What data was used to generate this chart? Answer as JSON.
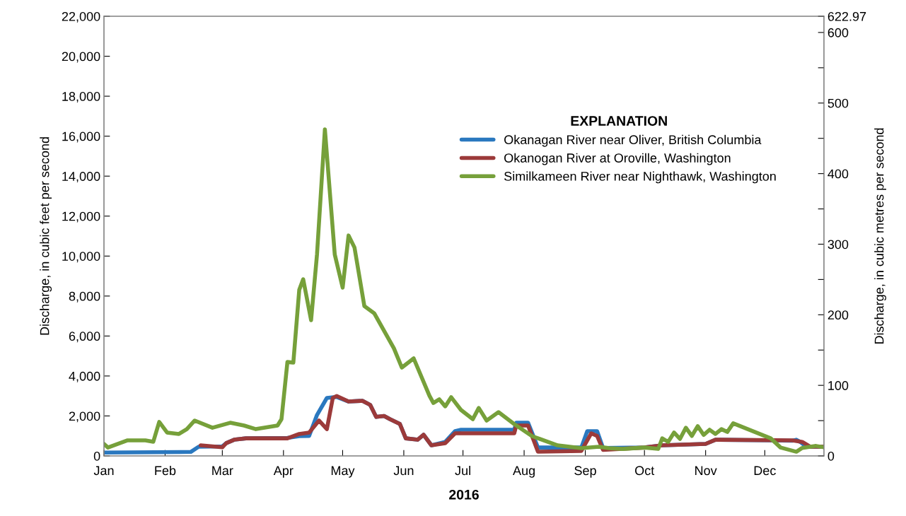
{
  "chart_data": {
    "type": "line",
    "xlabel": "2016",
    "ylabel": "Discharge, in cubic feet per second",
    "y2label": "Discharge, in cubic metres per second",
    "legend_title": "EXPLANATION",
    "legend": "top right",
    "grid": false,
    "marker": "none",
    "line_style": "solid",
    "xlim": [
      "2016-01-01",
      "2016-12-31"
    ],
    "xticks": [
      {
        "value": "2016-01-01",
        "label": "Jan"
      },
      {
        "value": "2016-02-01",
        "label": "Feb"
      },
      {
        "value": "2016-03-01",
        "label": "Mar"
      },
      {
        "value": "2016-04-01",
        "label": "Apr"
      },
      {
        "value": "2016-05-01",
        "label": "May"
      },
      {
        "value": "2016-06-01",
        "label": "Jun"
      },
      {
        "value": "2016-07-01",
        "label": "Jul"
      },
      {
        "value": "2016-08-01",
        "label": "Aug"
      },
      {
        "value": "2016-09-01",
        "label": "Sep"
      },
      {
        "value": "2016-10-01",
        "label": "Oct"
      },
      {
        "value": "2016-11-01",
        "label": "Nov"
      },
      {
        "value": "2016-12-01",
        "label": "Dec"
      }
    ],
    "ylim": [
      0,
      22000
    ],
    "yticks": [
      0,
      {
        "value": 2000,
        "label": "2,000"
      },
      {
        "value": 4000,
        "label": "4,000"
      },
      {
        "value": 6000,
        "label": "6,000"
      },
      {
        "value": 8000,
        "label": "8,000"
      },
      {
        "value": 10000,
        "label": "10,000"
      },
      {
        "value": 12000,
        "label": "12,000"
      },
      {
        "value": 14000,
        "label": "14,000"
      },
      {
        "value": 16000,
        "label": "16,000"
      },
      {
        "value": 18000,
        "label": "18,000"
      },
      {
        "value": 20000,
        "label": "20,000"
      },
      {
        "value": 22000,
        "label": "22,000"
      }
    ],
    "y2lim": [
      0,
      622.97
    ],
    "y2ticks": [
      0,
      {
        "value": 50,
        "label": null
      },
      100,
      {
        "value": 150,
        "label": null
      },
      200,
      {
        "value": 250,
        "label": null
      },
      300,
      {
        "value": 350,
        "label": null
      },
      400,
      {
        "value": 450,
        "label": null
      },
      500,
      {
        "value": 550,
        "label": null
      },
      600,
      622.97
    ],
    "series": [
      {
        "name": "Okanagan River near Oliver, British Columbia",
        "color": "#2a78bf",
        "x": [
          "2016-01-01",
          "2016-02-14",
          "2016-02-18",
          "2016-03-01",
          "2016-03-03",
          "2016-03-07",
          "2016-03-13",
          "2016-04-03",
          "2016-04-09",
          "2016-04-14",
          "2016-04-18",
          "2016-04-23",
          "2016-04-28",
          "2016-05-04",
          "2016-05-11",
          "2016-05-15",
          "2016-05-18",
          "2016-05-22",
          "2016-05-25",
          "2016-05-30",
          "2016-06-02",
          "2016-06-08",
          "2016-06-11",
          "2016-06-15",
          "2016-06-22",
          "2016-06-27",
          "2016-06-30",
          "2016-07-27",
          "2016-07-28",
          "2016-08-03",
          "2016-08-08",
          "2016-08-30",
          "2016-09-02",
          "2016-09-07",
          "2016-09-10",
          "2016-10-01",
          "2016-10-10",
          "2016-11-01",
          "2016-11-06",
          "2016-12-04",
          "2016-12-15",
          "2016-12-17",
          "2016-12-19",
          "2016-12-22",
          "2016-12-31"
        ],
        "values": [
          170,
          200,
          460,
          480,
          640,
          810,
          880,
          900,
          990,
          1000,
          2050,
          2900,
          2950,
          2720,
          2760,
          2550,
          1950,
          2000,
          1840,
          1600,
          880,
          810,
          1060,
          530,
          700,
          1240,
          1310,
          1310,
          1660,
          1660,
          420,
          420,
          1240,
          1240,
          400,
          420,
          530,
          600,
          810,
          780,
          760,
          810,
          700,
          460,
          460
        ]
      },
      {
        "name": "Okanogan River at Oroville, Washington",
        "color": "#9c3a3a",
        "x": [
          "2016-02-19",
          "2016-03-01",
          "2016-03-03",
          "2016-03-07",
          "2016-03-13",
          "2016-04-03",
          "2016-04-09",
          "2016-04-14",
          "2016-04-19",
          "2016-04-23",
          "2016-04-26",
          "2016-04-28",
          "2016-05-04",
          "2016-05-11",
          "2016-05-15",
          "2016-05-18",
          "2016-05-22",
          "2016-05-25",
          "2016-05-30",
          "2016-06-02",
          "2016-06-08",
          "2016-06-11",
          "2016-06-15",
          "2016-06-22",
          "2016-06-27",
          "2016-07-27",
          "2016-07-28",
          "2016-08-03",
          "2016-08-08",
          "2016-08-30",
          "2016-09-04",
          "2016-09-07",
          "2016-09-10",
          "2016-10-01",
          "2016-10-10",
          "2016-11-01",
          "2016-11-06",
          "2016-12-15",
          "2016-12-20",
          "2016-12-24",
          "2016-12-31"
        ],
        "values": [
          530,
          430,
          640,
          810,
          880,
          880,
          1100,
          1170,
          1770,
          1340,
          2900,
          3000,
          2720,
          2760,
          2550,
          1950,
          2000,
          1840,
          1600,
          880,
          810,
          1060,
          530,
          640,
          1130,
          1130,
          1520,
          1520,
          210,
          250,
          1130,
          1000,
          300,
          420,
          530,
          600,
          810,
          780,
          700,
          460,
          460
        ]
      },
      {
        "name": "Similkameen River near Nighthawk, Washington",
        "color": "#76a03a",
        "x": [
          "2016-01-01",
          "2016-01-03",
          "2016-01-13",
          "2016-01-22",
          "2016-01-26",
          "2016-01-29",
          "2016-02-02",
          "2016-02-08",
          "2016-02-12",
          "2016-02-16",
          "2016-02-25",
          "2016-03-05",
          "2016-03-12",
          "2016-03-18",
          "2016-03-29",
          "2016-03-31",
          "2016-04-03",
          "2016-04-06",
          "2016-04-09",
          "2016-04-11",
          "2016-04-15",
          "2016-04-18",
          "2016-04-22",
          "2016-04-27",
          "2016-05-01",
          "2016-05-04",
          "2016-05-07",
          "2016-05-12",
          "2016-05-17",
          "2016-05-27",
          "2016-05-31",
          "2016-06-06",
          "2016-06-14",
          "2016-06-16",
          "2016-06-19",
          "2016-06-22",
          "2016-06-25",
          "2016-06-30",
          "2016-07-06",
          "2016-07-09",
          "2016-07-13",
          "2016-07-19",
          "2016-07-27",
          "2016-08-05",
          "2016-08-18",
          "2016-08-30",
          "2016-09-08",
          "2016-09-13",
          "2016-09-20",
          "2016-10-01",
          "2016-10-08",
          "2016-10-10",
          "2016-10-13",
          "2016-10-16",
          "2016-10-19",
          "2016-10-22",
          "2016-10-25",
          "2016-10-28",
          "2016-10-31",
          "2016-11-03",
          "2016-11-06",
          "2016-11-09",
          "2016-11-12",
          "2016-11-15",
          "2016-12-04",
          "2016-12-09",
          "2016-12-17",
          "2016-12-20",
          "2016-12-27",
          "2016-12-31"
        ],
        "values": [
          600,
          420,
          780,
          780,
          710,
          1700,
          1170,
          1100,
          1340,
          1770,
          1410,
          1660,
          1520,
          1340,
          1520,
          1840,
          4700,
          4670,
          8310,
          8840,
          6790,
          10080,
          16340,
          10080,
          8420,
          11030,
          10430,
          7500,
          7140,
          5380,
          4420,
          4880,
          3010,
          2650,
          2830,
          2480,
          2940,
          2300,
          1840,
          2400,
          1770,
          2190,
          1590,
          990,
          530,
          390,
          460,
          390,
          350,
          420,
          350,
          880,
          700,
          1170,
          850,
          1410,
          1000,
          1490,
          1050,
          1310,
          1100,
          1340,
          1200,
          1630,
          880,
          420,
          210,
          400,
          500,
          430
        ]
      }
    ]
  }
}
